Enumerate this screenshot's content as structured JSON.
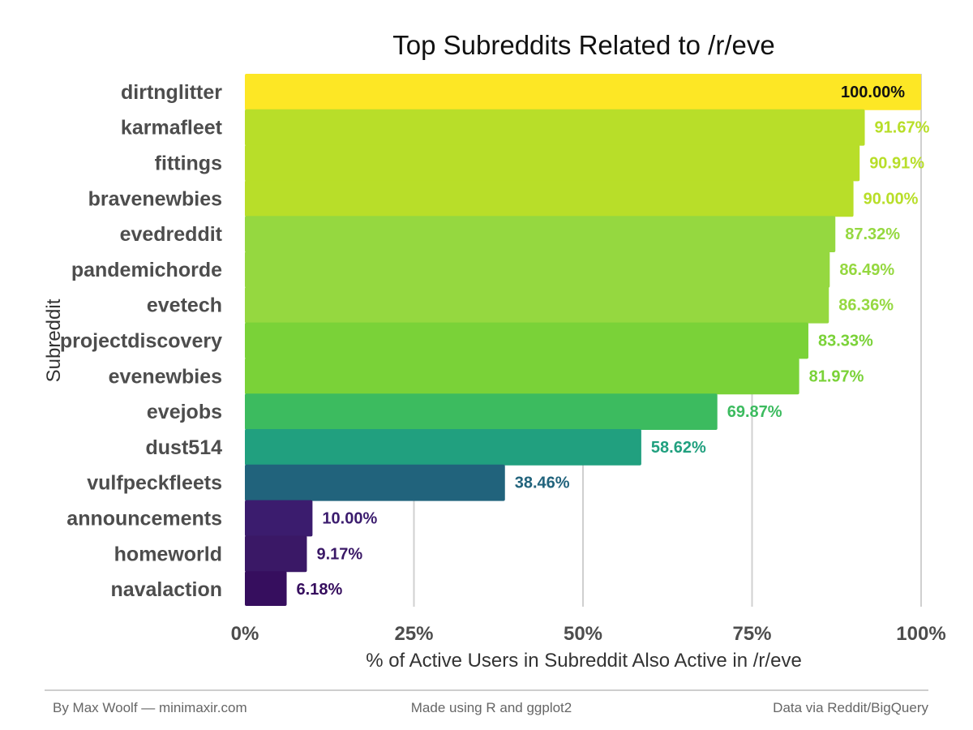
{
  "chart_data": {
    "type": "bar",
    "orientation": "horizontal",
    "title": "Top Subreddits Related to /r/eve",
    "xlabel": "% of Active Users in Subreddit Also Active in /r/eve",
    "ylabel": "Subreddit",
    "xlim": [
      0,
      100
    ],
    "xticks": [
      0,
      25,
      50,
      75,
      100
    ],
    "xtick_labels": [
      "0%",
      "25%",
      "50%",
      "75%",
      "100%"
    ],
    "grid": "vertical",
    "categories": [
      "dirtnglitter",
      "karmafleet",
      "fittings",
      "bravenewbies",
      "evedreddit",
      "pandemichorde",
      "evetech",
      "projectdiscovery",
      "evenewbies",
      "evejobs",
      "dust514",
      "vulfpeckfleets",
      "announcements",
      "homeworld",
      "navalaction"
    ],
    "values": [
      100.0,
      91.67,
      90.91,
      90.0,
      87.32,
      86.49,
      86.36,
      83.33,
      81.97,
      69.87,
      58.62,
      38.46,
      10.0,
      9.17,
      6.18
    ],
    "value_labels": [
      "100.00%",
      "91.67%",
      "90.91%",
      "90.00%",
      "87.32%",
      "86.49%",
      "86.36%",
      "83.33%",
      "81.97%",
      "69.87%",
      "58.62%",
      "38.46%",
      "10.00%",
      "9.17%",
      "6.18%"
    ],
    "colors": [
      "#fde725",
      "#b8de29",
      "#b8de29",
      "#b8de29",
      "#95d840",
      "#95d840",
      "#95d840",
      "#7ad238",
      "#7ad238",
      "#3cbb5f",
      "#21a07f",
      "#21637c",
      "#3b1c6e",
      "#3a1866",
      "#360e5e"
    ],
    "label_colors": [
      "#111111",
      "#b8de29",
      "#b8de29",
      "#b8de29",
      "#95d840",
      "#95d840",
      "#95d840",
      "#7ad238",
      "#7ad238",
      "#3cbb5f",
      "#21a07f",
      "#21637c",
      "#3b1c6e",
      "#3a1866",
      "#360e5e"
    ],
    "label_inside": [
      true,
      false,
      false,
      false,
      false,
      false,
      false,
      false,
      false,
      false,
      false,
      false,
      false,
      false,
      false
    ]
  },
  "footer": {
    "left": "By Max Woolf — minimaxir.com",
    "center": "Made using R and ggplot2",
    "right": "Data via Reddit/BigQuery"
  }
}
